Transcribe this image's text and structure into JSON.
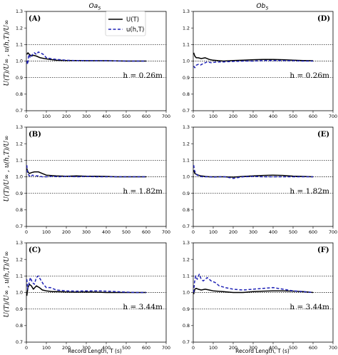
{
  "column_titles": [
    "Oa",
    "Ob"
  ],
  "column_title_subscript": "5",
  "xlabel": "Record Length, T (s)",
  "ylabel": "U(T)/U∞ , u(h,T)/U∞",
  "legend": [
    {
      "label": "U(T)",
      "color": "#000000",
      "style": "solid"
    },
    {
      "label": "u(h,T)",
      "color": "#1f22b5",
      "style": "dashed"
    }
  ],
  "colors": {
    "u_T": "#000000",
    "u_hT": "#1f22b5"
  },
  "chart_data": [
    {
      "type": "line",
      "panel": "(A)",
      "annotation": "h = 0.26m",
      "xlim": [
        0,
        700
      ],
      "ylim": [
        0.7,
        1.3
      ],
      "xticks": [
        0,
        100,
        200,
        300,
        400,
        500,
        600,
        700
      ],
      "yticks": [
        0.7,
        0.8,
        0.9,
        1.0,
        1.1,
        1.2,
        1.3
      ],
      "reference_lines": [
        1.1,
        1.0,
        0.9
      ],
      "series": [
        {
          "name": "U(T)",
          "x": [
            2,
            8,
            15,
            25,
            35,
            50,
            70,
            90,
            120,
            150,
            200,
            250,
            300,
            350,
            400,
            450,
            500,
            550,
            600
          ],
          "y": [
            1.04,
            1.05,
            1.04,
            1.03,
            1.035,
            1.03,
            1.02,
            1.015,
            1.01,
            1.005,
            1.003,
            1.003,
            1.002,
            1.002,
            1.002,
            1.001,
            1.0,
            1.0,
            1.0
          ]
        },
        {
          "name": "u(h,T)",
          "x": [
            2,
            6,
            12,
            20,
            30,
            40,
            50,
            60,
            70,
            85,
            100,
            120,
            150,
            200,
            250,
            300,
            350,
            400,
            450,
            500,
            550,
            600
          ],
          "y": [
            1.0,
            0.98,
            1.04,
            1.02,
            1.04,
            1.05,
            1.04,
            1.055,
            1.05,
            1.04,
            1.02,
            1.015,
            1.01,
            1.005,
            1.003,
            1.003,
            1.002,
            1.002,
            1.001,
            1.0,
            1.0,
            1.0
          ]
        }
      ]
    },
    {
      "type": "line",
      "panel": "(D)",
      "annotation": "h = 0.26m",
      "xlim": [
        0,
        700
      ],
      "ylim": [
        0.7,
        1.3
      ],
      "xticks": [
        0,
        100,
        200,
        300,
        400,
        500,
        600,
        700
      ],
      "yticks": [
        0.7,
        0.8,
        0.9,
        1.0,
        1.1,
        1.2,
        1.3
      ],
      "reference_lines": [
        1.1,
        1.0,
        0.9
      ],
      "series": [
        {
          "name": "U(T)",
          "x": [
            2,
            8,
            15,
            25,
            40,
            60,
            80,
            100,
            150,
            200,
            250,
            300,
            350,
            400,
            450,
            500,
            550,
            600
          ],
          "y": [
            1.05,
            1.03,
            1.02,
            1.02,
            1.015,
            1.02,
            1.01,
            1.005,
            1.0,
            1.003,
            1.005,
            1.008,
            1.01,
            1.01,
            1.008,
            1.005,
            1.003,
            1.002
          ]
        },
        {
          "name": "u(h,T)",
          "x": [
            2,
            8,
            15,
            25,
            35,
            50,
            70,
            90,
            120,
            150,
            200,
            250,
            300,
            350,
            400,
            450,
            500,
            550,
            600
          ],
          "y": [
            0.97,
            0.96,
            0.975,
            0.98,
            0.975,
            0.985,
            0.995,
            0.99,
            0.995,
            0.995,
            0.998,
            1.0,
            1.0,
            1.003,
            1.003,
            1.003,
            1.002,
            1.0,
            1.0
          ]
        }
      ]
    },
    {
      "type": "line",
      "panel": "(B)",
      "annotation": "h = 1.82m",
      "xlim": [
        0,
        700
      ],
      "ylim": [
        0.7,
        1.3
      ],
      "xticks": [
        0,
        100,
        200,
        300,
        400,
        500,
        600,
        700
      ],
      "yticks": [
        0.7,
        0.8,
        0.9,
        1.0,
        1.1,
        1.2,
        1.3
      ],
      "reference_lines": [
        1.1,
        1.0,
        0.9
      ],
      "series": [
        {
          "name": "U(T)",
          "x": [
            2,
            8,
            15,
            25,
            40,
            60,
            80,
            100,
            150,
            200,
            250,
            300,
            350,
            400,
            450,
            500,
            550,
            600
          ],
          "y": [
            1.05,
            1.03,
            1.02,
            1.025,
            1.03,
            1.03,
            1.02,
            1.01,
            1.005,
            1.003,
            1.005,
            1.003,
            1.003,
            1.002,
            1.0,
            1.0,
            1.0,
            1.0
          ]
        },
        {
          "name": "u(h,T)",
          "x": [
            2,
            6,
            12,
            20,
            30,
            45,
            60,
            80,
            100,
            130,
            160,
            200,
            250,
            300,
            350,
            400,
            450,
            500,
            550,
            600
          ],
          "y": [
            1.07,
            1.02,
            1.01,
            1.0,
            1.01,
            1.005,
            1.005,
            1.0,
            1.0,
            1.003,
            1.0,
            1.003,
            1.0,
            1.002,
            1.0,
            1.0,
            1.0,
            1.0,
            1.0,
            1.0
          ]
        }
      ]
    },
    {
      "type": "line",
      "panel": "(E)",
      "annotation": "h = 1.82m",
      "xlim": [
        0,
        700
      ],
      "ylim": [
        0.7,
        1.3
      ],
      "xticks": [
        0,
        100,
        200,
        300,
        400,
        500,
        600,
        700
      ],
      "yticks": [
        0.7,
        0.8,
        0.9,
        1.0,
        1.1,
        1.2,
        1.3
      ],
      "reference_lines": [
        1.1,
        1.0,
        0.9
      ],
      "series": [
        {
          "name": "U(T)",
          "x": [
            2,
            8,
            15,
            25,
            40,
            60,
            80,
            100,
            150,
            200,
            250,
            300,
            350,
            400,
            450,
            500,
            550,
            600
          ],
          "y": [
            1.04,
            1.02,
            1.015,
            1.01,
            1.005,
            1.002,
            1.0,
            1.0,
            1.0,
            0.998,
            1.002,
            1.005,
            1.008,
            1.01,
            1.008,
            1.004,
            1.002,
            1.0
          ]
        },
        {
          "name": "u(h,T)",
          "x": [
            2,
            6,
            12,
            20,
            30,
            45,
            60,
            80,
            100,
            130,
            160,
            200,
            250,
            300,
            350,
            400,
            450,
            500,
            550,
            600
          ],
          "y": [
            1.07,
            1.04,
            1.02,
            1.01,
            1.005,
            1.0,
            1.0,
            1.0,
            0.998,
            1.0,
            1.0,
            0.99,
            1.0,
            1.002,
            1.0,
            1.0,
            1.0,
            1.0,
            1.0,
            1.0
          ]
        }
      ]
    },
    {
      "type": "line",
      "panel": "(C)",
      "annotation": "h = 3.44m",
      "xlim": [
        0,
        700
      ],
      "ylim": [
        0.7,
        1.3
      ],
      "xticks": [
        0,
        100,
        200,
        300,
        400,
        500,
        600,
        700
      ],
      "yticks": [
        0.7,
        0.8,
        0.9,
        1.0,
        1.1,
        1.2,
        1.3
      ],
      "reference_lines": [
        1.1,
        1.0,
        0.9
      ],
      "series": [
        {
          "name": "U(T)",
          "x": [
            2,
            8,
            15,
            25,
            35,
            50,
            65,
            80,
            100,
            130,
            160,
            200,
            250,
            300,
            350,
            400,
            450,
            500,
            550,
            600
          ],
          "y": [
            0.98,
            1.03,
            1.05,
            1.04,
            1.02,
            1.04,
            1.03,
            1.015,
            1.01,
            1.005,
            1.005,
            1.003,
            1.002,
            1.003,
            1.002,
            1.0,
            1.0,
            1.0,
            1.0,
            1.0
          ]
        },
        {
          "name": "u(h,T)",
          "x": [
            2,
            6,
            12,
            20,
            30,
            40,
            50,
            60,
            70,
            85,
            100,
            120,
            150,
            200,
            250,
            300,
            350,
            400,
            450,
            500,
            550,
            600
          ],
          "y": [
            1.08,
            1.02,
            1.05,
            1.09,
            1.06,
            1.05,
            1.09,
            1.1,
            1.08,
            1.05,
            1.03,
            1.03,
            1.015,
            1.01,
            1.008,
            1.01,
            1.01,
            1.008,
            1.005,
            1.002,
            1.0,
            1.0
          ]
        }
      ]
    },
    {
      "type": "line",
      "panel": "(F)",
      "annotation": "h = 3.44m",
      "xlim": [
        0,
        700
      ],
      "ylim": [
        0.7,
        1.3
      ],
      "xticks": [
        0,
        100,
        200,
        300,
        400,
        500,
        600,
        700
      ],
      "yticks": [
        0.7,
        0.8,
        0.9,
        1.0,
        1.1,
        1.2,
        1.3
      ],
      "reference_lines": [
        1.1,
        1.0,
        0.9
      ],
      "series": [
        {
          "name": "U(T)",
          "x": [
            2,
            8,
            15,
            25,
            40,
            60,
            80,
            100,
            150,
            200,
            250,
            300,
            350,
            400,
            450,
            500,
            550,
            600
          ],
          "y": [
            0.99,
            1.02,
            1.025,
            1.02,
            1.015,
            1.02,
            1.015,
            1.01,
            1.005,
            1.0,
            1.0,
            1.005,
            1.008,
            1.01,
            1.01,
            1.008,
            1.005,
            1.0
          ]
        },
        {
          "name": "u(h,T)",
          "x": [
            2,
            6,
            12,
            20,
            30,
            40,
            50,
            60,
            70,
            80,
            90,
            110,
            130,
            160,
            200,
            250,
            300,
            350,
            400,
            450,
            500,
            550,
            600
          ],
          "y": [
            1.0,
            1.06,
            1.1,
            1.08,
            1.11,
            1.08,
            1.07,
            1.08,
            1.09,
            1.08,
            1.07,
            1.06,
            1.04,
            1.03,
            1.02,
            1.015,
            1.02,
            1.025,
            1.03,
            1.02,
            1.01,
            1.005,
            1.0
          ]
        }
      ]
    }
  ]
}
